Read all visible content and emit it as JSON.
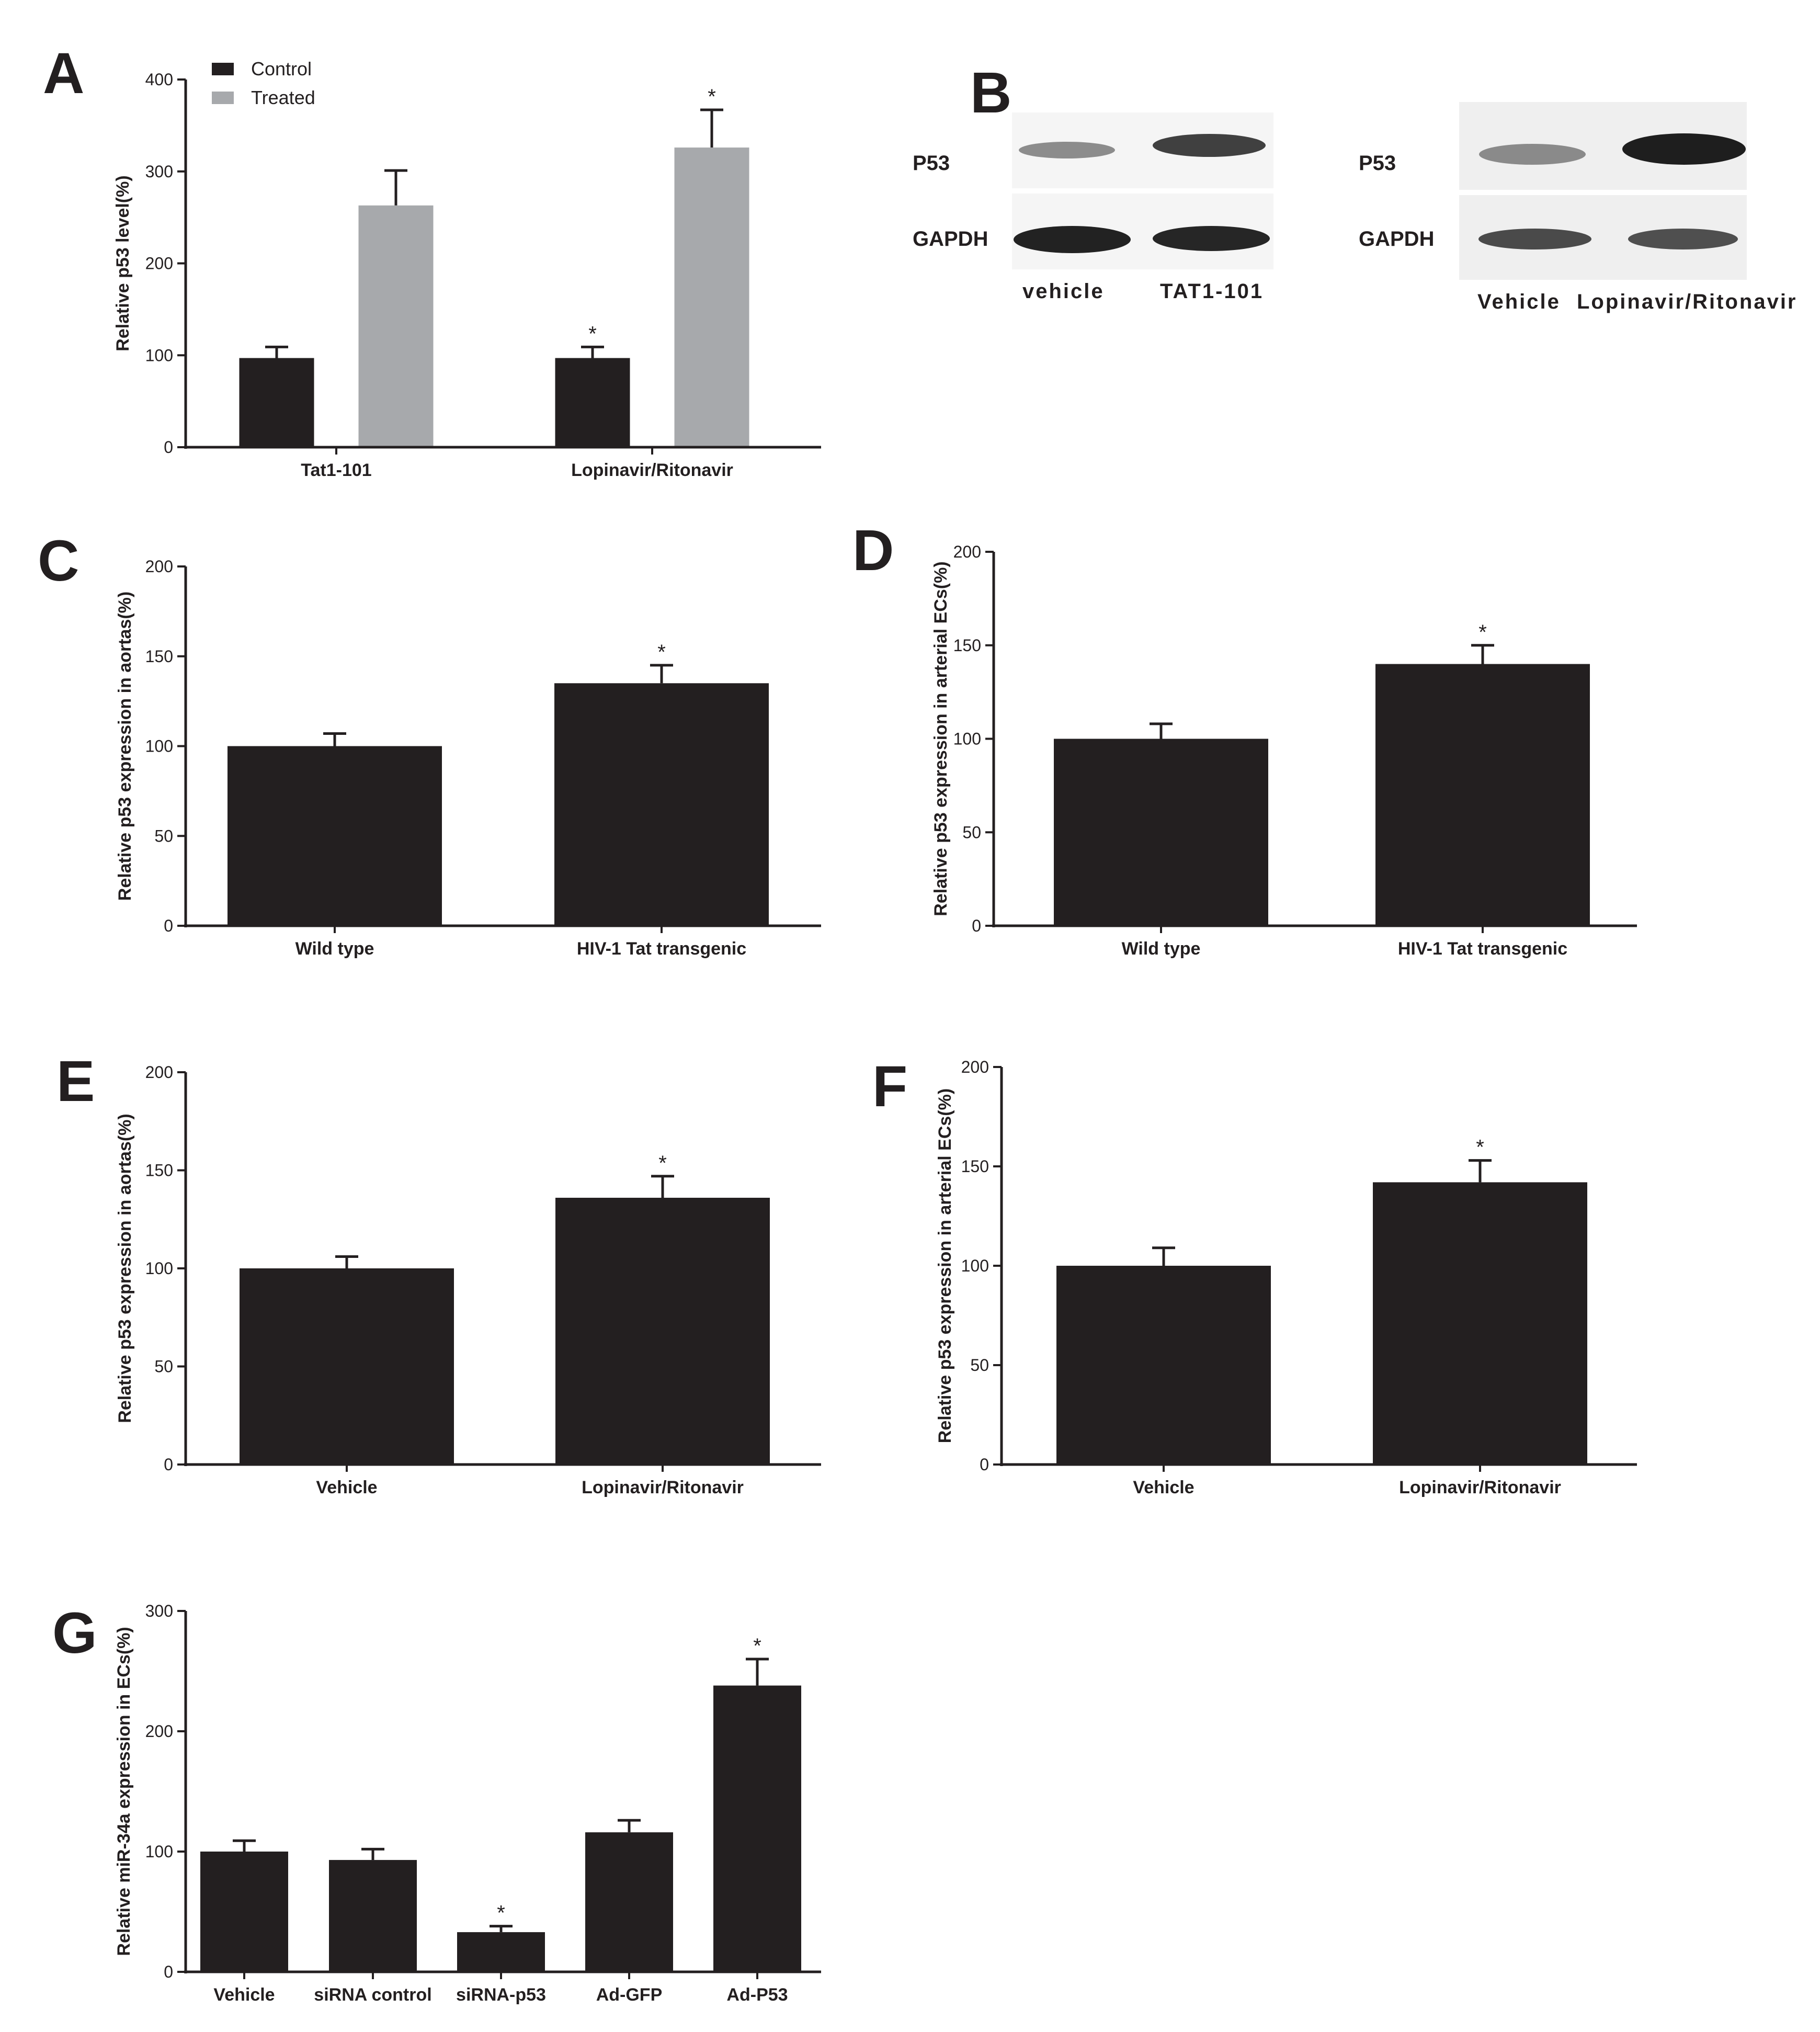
{
  "panels": [
    {
      "id": "A",
      "letter": "A"
    },
    {
      "id": "B",
      "letter": "B"
    },
    {
      "id": "C",
      "letter": "C"
    },
    {
      "id": "D",
      "letter": "D"
    },
    {
      "id": "E",
      "letter": "E"
    },
    {
      "id": "F",
      "letter": "F"
    },
    {
      "id": "G",
      "letter": "G"
    }
  ],
  "blots": {
    "left": {
      "row_labels": [
        "P53",
        "GAPDH"
      ],
      "lane_labels": [
        "vehicle",
        "TAT1-101"
      ]
    },
    "right": {
      "row_labels": [
        "P53",
        "GAPDH"
      ],
      "lane_labels": [
        "Vehicle",
        "Lopinavir/Ritonavir"
      ]
    }
  },
  "colors": {
    "bar_dark": "#231f20",
    "bar_gray": "#a7a9ac",
    "axis": "#231f20"
  },
  "chart_data": [
    {
      "panel": "A",
      "type": "bar",
      "categories": [
        "Tat1-101",
        "Lopinavir/Ritonavir"
      ],
      "series": [
        {
          "name": "Control",
          "values": [
            97,
            97
          ],
          "errors": [
            12,
            12
          ],
          "color": "#231f20"
        },
        {
          "name": "Treated",
          "values": [
            263,
            326
          ],
          "errors": [
            38,
            41
          ],
          "color": "#a7a9ac"
        }
      ],
      "significance": [
        [
          false,
          true
        ],
        [
          false,
          true
        ]
      ],
      "ylabel": "Relative p53 level(%)",
      "ylim": [
        0,
        400
      ],
      "yticks": [
        0,
        100,
        200,
        300,
        400
      ],
      "legend": "top-left",
      "grid": false
    },
    {
      "panel": "C",
      "type": "bar",
      "categories": [
        "Wild type",
        "HIV-1 Tat transgenic"
      ],
      "values": [
        100,
        135
      ],
      "errors": [
        7,
        10
      ],
      "significance": [
        false,
        true
      ],
      "ylabel": "Relative p53 expression in aortas(%)",
      "ylim": [
        0,
        200
      ],
      "yticks": [
        0,
        50,
        100,
        150,
        200
      ],
      "grid": false
    },
    {
      "panel": "D",
      "type": "bar",
      "categories": [
        "Wild type",
        "HIV-1 Tat transgenic"
      ],
      "values": [
        100,
        140
      ],
      "errors": [
        8,
        10
      ],
      "significance": [
        false,
        true
      ],
      "ylabel": "Relative p53 expression in arterial ECs(%)",
      "ylim": [
        0,
        200
      ],
      "yticks": [
        0,
        50,
        100,
        150,
        200
      ],
      "grid": false
    },
    {
      "panel": "E",
      "type": "bar",
      "categories": [
        "Vehicle",
        "Lopinavir/Ritonavir"
      ],
      "values": [
        100,
        136
      ],
      "errors": [
        6,
        11
      ],
      "significance": [
        false,
        true
      ],
      "ylabel": "Relative p53 expression in aortas(%)",
      "ylim": [
        0,
        200
      ],
      "yticks": [
        0,
        50,
        100,
        150,
        200
      ],
      "grid": false
    },
    {
      "panel": "F",
      "type": "bar",
      "categories": [
        "Vehicle",
        "Lopinavir/Ritonavir"
      ],
      "values": [
        100,
        142
      ],
      "errors": [
        9,
        11
      ],
      "significance": [
        false,
        true
      ],
      "ylabel": "Relative p53 expression in arterial ECs(%)",
      "ylim": [
        0,
        200
      ],
      "yticks": [
        0,
        50,
        100,
        150,
        200
      ],
      "grid": false
    },
    {
      "panel": "G",
      "type": "bar",
      "categories": [
        "Vehicle",
        "siRNA control",
        "siRNA-p53",
        "Ad-GFP",
        "Ad-P53"
      ],
      "values": [
        100,
        93,
        33,
        116,
        238
      ],
      "errors": [
        9,
        9,
        5,
        10,
        22
      ],
      "significance": [
        false,
        false,
        true,
        false,
        true
      ],
      "ylabel": "Relative miR-34a expression in ECs(%)",
      "ylim": [
        0,
        300
      ],
      "yticks": [
        0,
        100,
        200,
        300
      ],
      "grid": false
    }
  ]
}
